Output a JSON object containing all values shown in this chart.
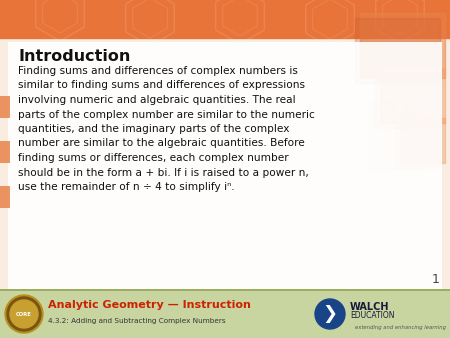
{
  "title": "Introduction",
  "body_lines": [
    "Finding sums and differences of complex numbers is",
    "similar to finding sums and differences of expressions",
    "involving numeric and algebraic quantities. The real",
    "parts of the complex number are similar to the numeric",
    "quantities, and the imaginary parts of the complex",
    "number are similar to the algebraic quantities. Before",
    "finding sums or differences, each complex number",
    "should be in the form a + bi. If i is raised to a power n,",
    "use the remainder of n ÷ 4 to simplify iⁿ."
  ],
  "slide_number": "1",
  "footer_left_title": "Analytic Geometry — Instruction",
  "footer_left_subtitle": "4.3.2: Adding and Subtracting Complex Numbers",
  "footer_right_label": "WALCH",
  "footer_right_sublabel": "EDUCATION",
  "footer_right_tagline": "extending and enhancing learning",
  "bg_orange": "#e8743a",
  "bg_orange_light": "#f0a070",
  "bg_cream": "#f8ede0",
  "white_panel": "#ffffff",
  "footer_bg": "#c8d5a0",
  "footer_border": "#9aad60",
  "title_color": "#111111",
  "body_color": "#111111",
  "footer_title_color": "#cc2200",
  "footer_subtitle_color": "#333333",
  "slide_num_color": "#444444",
  "left_accent_color": "#e8824a",
  "walch_blue": "#1a4488"
}
